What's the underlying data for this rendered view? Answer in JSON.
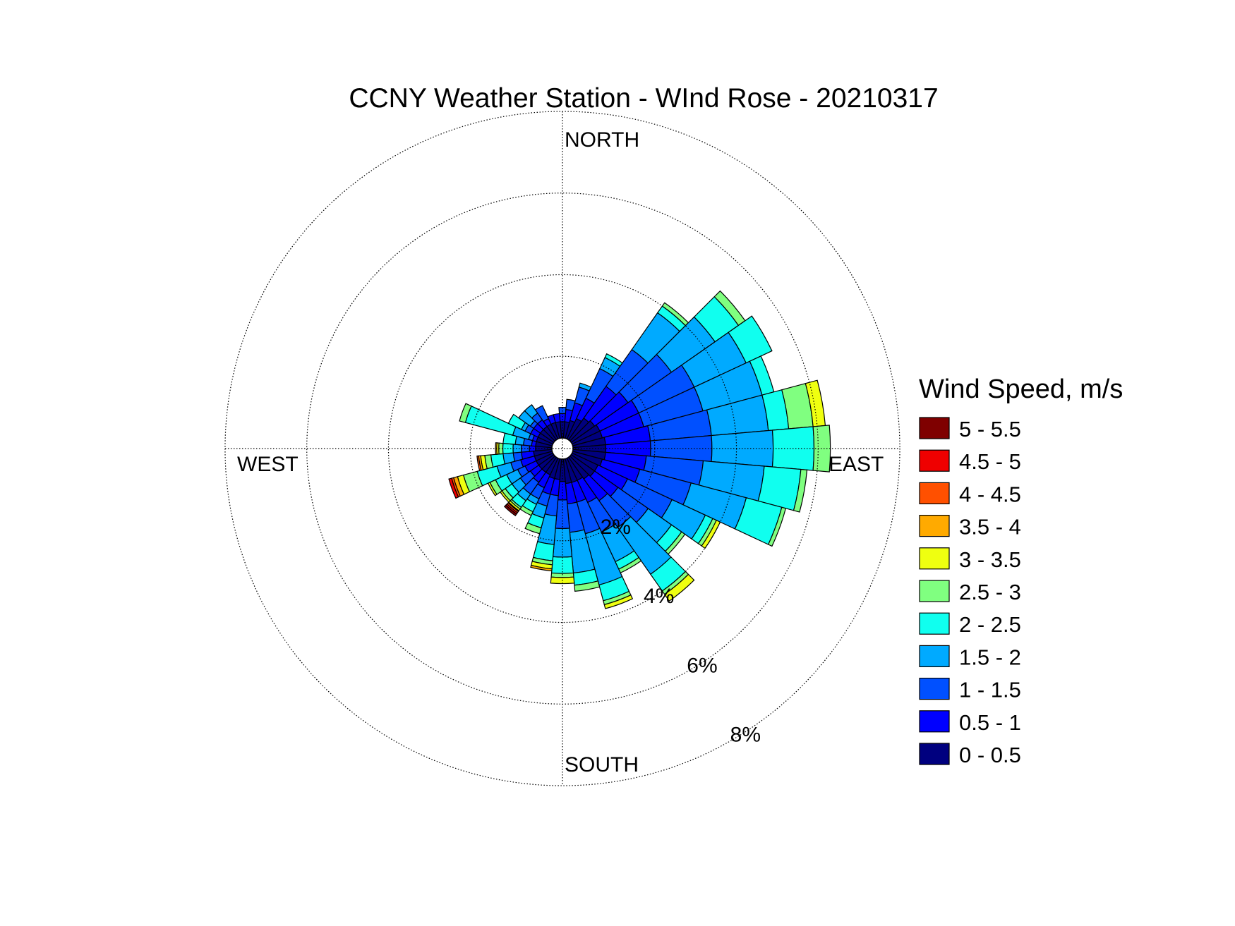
{
  "chart_data": {
    "type": "windrose",
    "title": "CCNY Weather Station - WInd Rose - 20210317",
    "direction_labels": {
      "north": "NORTH",
      "east": "EAST",
      "south": "SOUTH",
      "west": "WEST"
    },
    "radial_ticks": [
      2,
      4,
      6,
      8
    ],
    "radial_tick_labels": [
      "2%",
      "4%",
      "6%",
      "8%"
    ],
    "radial_max": 8,
    "center_hole": 0.26,
    "bin_count": 36,
    "bin_width_deg": 10,
    "legend_title": "Wind Speed, m/s",
    "speed_bins": [
      {
        "label": "0 - 0.5",
        "color": "#00007f"
      },
      {
        "label": "0.5 - 1",
        "color": "#0000ff"
      },
      {
        "label": "1 - 1.5",
        "color": "#0050ff"
      },
      {
        "label": "1.5 - 2",
        "color": "#00aaff"
      },
      {
        "label": "2 - 2.5",
        "color": "#10ffef"
      },
      {
        "label": "2.5 - 3",
        "color": "#80ff80"
      },
      {
        "label": "3 - 3.5",
        "color": "#efff10"
      },
      {
        "label": "3.5 - 4",
        "color": "#ffaa00"
      },
      {
        "label": "4 - 4.5",
        "color": "#ff5000"
      },
      {
        "label": "4.5 - 5",
        "color": "#ef0000"
      },
      {
        "label": "5 - 5.5",
        "color": "#7f0000"
      }
    ],
    "directions_deg": [
      0,
      10,
      20,
      30,
      40,
      50,
      60,
      70,
      80,
      90,
      100,
      110,
      120,
      130,
      140,
      150,
      160,
      170,
      180,
      190,
      200,
      210,
      220,
      230,
      240,
      250,
      260,
      270,
      280,
      290,
      300,
      310,
      320,
      330,
      340,
      350
    ],
    "cumulative_percent": [
      [
        0.4,
        0.6,
        0.75
      ],
      [
        0.4,
        0.7,
        0.95
      ],
      [
        0.45,
        0.9,
        1.3,
        1.4
      ],
      [
        0.55,
        1.1,
        1.9,
        2.2,
        2.3
      ],
      [
        0.65,
        1.6,
        2.7,
        3.8,
        4.0,
        4.1
      ],
      [
        0.7,
        1.7,
        3.0,
        4.3,
        5.0,
        5.2
      ],
      [
        0.75,
        1.8,
        3.3,
        4.7,
        5.4
      ],
      [
        0.75,
        1.8,
        3.3,
        4.8,
        5.1
      ],
      [
        0.8,
        1.9,
        3.4,
        4.8,
        5.3,
        5.9,
        6.2
      ],
      [
        0.8,
        1.9,
        3.4,
        4.9,
        5.9,
        6.3
      ],
      [
        0.8,
        1.8,
        3.2,
        4.7,
        5.6,
        5.75
      ],
      [
        0.75,
        1.7,
        3.0,
        4.4,
        5.3,
        5.4
      ],
      [
        0.7,
        1.5,
        2.7,
        3.6,
        3.8,
        3.9,
        4.0
      ],
      [
        0.7,
        1.4,
        2.3,
        3.0,
        3.3,
        3.4
      ],
      [
        0.65,
        1.3,
        2.1,
        3.5,
        4.0,
        4.1,
        4.3
      ],
      [
        0.6,
        1.2,
        2.0,
        2.8,
        3.0,
        3.1
      ],
      [
        0.6,
        1.1,
        1.9,
        3.2,
        3.6,
        3.7,
        3.8
      ],
      [
        0.6,
        1.1,
        1.8,
        2.8,
        3.1,
        3.25
      ],
      [
        0.55,
        1.0,
        1.7,
        2.4,
        2.8,
        2.9,
        3.05
      ],
      [
        0.5,
        0.9,
        1.4,
        2.1,
        2.5,
        2.6,
        2.7,
        2.75
      ],
      [
        0.5,
        0.9,
        1.2,
        1.5,
        1.75,
        1.9
      ],
      [
        0.45,
        0.8,
        1.1,
        1.25,
        1.45,
        1.55
      ],
      [
        0.45,
        0.75,
        1.1,
        1.3,
        1.5,
        1.55,
        1.6,
        1.62,
        1.66,
        1.7,
        1.75
      ],
      [
        0.45,
        0.7,
        1.0,
        1.25,
        1.45,
        1.55,
        1.6
      ],
      [
        0.45,
        0.75,
        0.95,
        1.25,
        1.55,
        1.7,
        1.75
      ],
      [
        0.45,
        0.8,
        1.05,
        1.4,
        1.9,
        2.25,
        2.4,
        2.5,
        2.55,
        2.62
      ],
      [
        0.45,
        0.75,
        0.95,
        1.2,
        1.5,
        1.65,
        1.75,
        1.8,
        1.84
      ],
      [
        0.4,
        0.55,
        0.75,
        0.95,
        1.2,
        1.3,
        1.35,
        1.38
      ],
      [
        0.4,
        0.5,
        0.7,
        0.9,
        1.2
      ],
      [
        0.4,
        0.5,
        0.6,
        1.0,
        2.2,
        2.35
      ],
      [
        0.4,
        0.6,
        0.75,
        0.85,
        1.2
      ],
      [
        0.4,
        0.6,
        0.7,
        1.05
      ],
      [
        0.4,
        0.6,
        0.8,
        1.05
      ],
      [
        0.4,
        0.55,
        0.9
      ],
      [
        0.4,
        0.6
      ],
      [
        0.4,
        0.6
      ]
    ]
  }
}
